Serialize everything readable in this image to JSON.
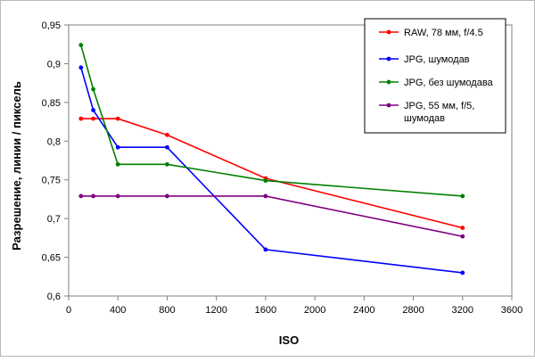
{
  "chart_data": {
    "type": "line",
    "title": "",
    "xlabel": "ISO",
    "ylabel": "Разрешение, линии / пиксель",
    "xlim": [
      0,
      3600
    ],
    "ylim": [
      0.6,
      0.95
    ],
    "x_ticks": [
      "0",
      "400",
      "800",
      "1200",
      "1600",
      "2000",
      "2400",
      "2800",
      "3200",
      "3600"
    ],
    "y_ticks": [
      "0,6",
      "0,65",
      "0,7",
      "0,75",
      "0,8",
      "0,85",
      "0,9",
      "0,95"
    ],
    "grid": false,
    "legend_position": "top-right",
    "series": [
      {
        "name": "RAW, 78 мм, f/4.5",
        "color": "#ff0000",
        "points": [
          [
            100,
            0.829
          ],
          [
            200,
            0.829
          ],
          [
            400,
            0.829
          ],
          [
            800,
            0.808
          ],
          [
            1600,
            0.752
          ],
          [
            3200,
            0.688
          ]
        ]
      },
      {
        "name": "JPG, шумодав",
        "color": "#0000ff",
        "points": [
          [
            100,
            0.895
          ],
          [
            200,
            0.84
          ],
          [
            400,
            0.792
          ],
          [
            800,
            0.792
          ],
          [
            1600,
            0.66
          ],
          [
            3200,
            0.63
          ]
        ]
      },
      {
        "name": "JPG, без шумодава",
        "color": "#008000",
        "points": [
          [
            100,
            0.924
          ],
          [
            200,
            0.867
          ],
          [
            400,
            0.77
          ],
          [
            800,
            0.77
          ],
          [
            1600,
            0.749
          ],
          [
            3200,
            0.729
          ]
        ]
      },
      {
        "name": "JPG, 55 мм, f/5, шумодав",
        "color": "#800080",
        "points": [
          [
            100,
            0.729
          ],
          [
            200,
            0.729
          ],
          [
            400,
            0.729
          ],
          [
            800,
            0.729
          ],
          [
            1600,
            0.729
          ],
          [
            3200,
            0.677
          ]
        ]
      }
    ]
  }
}
